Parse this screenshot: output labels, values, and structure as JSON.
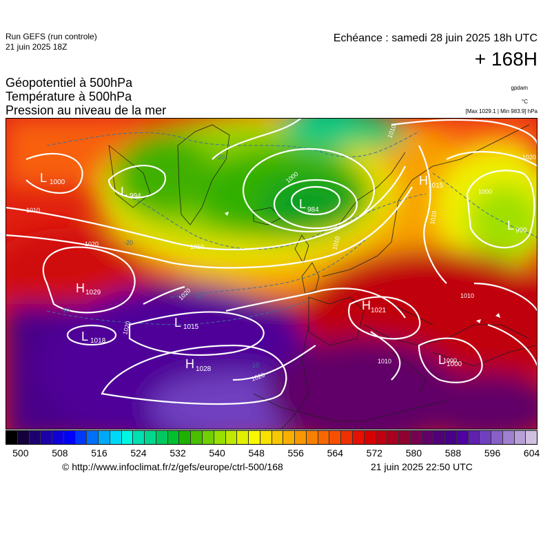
{
  "header": {
    "run_title": "Run GEFS (run controle)",
    "run_date": "21 juin 2025 18Z",
    "echeance": "Echéance : samedi 28 juin 2025 18h UTC",
    "lead_time": "+ 168H"
  },
  "parameters": [
    "Géopotentiel à 500hPa",
    "Température à 500hPa",
    "Pression au niveau de la mer"
  ],
  "units": {
    "geopotential": "gpdam",
    "temperature": "°C",
    "max_min": "[Max 1029.1 | Min 983.9] hPa"
  },
  "pressure_centers": [
    {
      "type": "L",
      "value": "1000"
    },
    {
      "type": "L",
      "value": "994"
    },
    {
      "type": "L",
      "value": "984"
    },
    {
      "type": "H",
      "value": "1015"
    },
    {
      "type": "L",
      "value": "990"
    },
    {
      "type": "H",
      "value": "1029"
    },
    {
      "type": "L",
      "value": "1015"
    },
    {
      "type": "L",
      "value": "1018"
    },
    {
      "type": "H",
      "value": "1028"
    },
    {
      "type": "H",
      "value": "1021"
    },
    {
      "type": "L",
      "value": "1000"
    }
  ],
  "isobar_labels": [
    "1010",
    "1020",
    "1000",
    "1010",
    "1020",
    "1000",
    "1010",
    "1020",
    "1010",
    "1010",
    "1010",
    "1000",
    "1010",
    "1020",
    "1020"
  ],
  "isotherm_labels": [
    "-20",
    "-20",
    "-20",
    "-10",
    "-10"
  ],
  "colorbar": {
    "colors": [
      "#000000",
      "#14003a",
      "#1c0070",
      "#1c00a8",
      "#1000d8",
      "#0000f8",
      "#0038f8",
      "#0070f8",
      "#00a8f8",
      "#00d8f8",
      "#00f8e0",
      "#00e0b0",
      "#00d890",
      "#00c860",
      "#00c030",
      "#20b000",
      "#48c000",
      "#70d000",
      "#98e000",
      "#c0e800",
      "#e0f000",
      "#f8f800",
      "#f8e000",
      "#f8c800",
      "#f8b000",
      "#f89800",
      "#f88000",
      "#f86800",
      "#f85000",
      "#f03000",
      "#e81000",
      "#d80000",
      "#c00010",
      "#a80020",
      "#900030",
      "#780050",
      "#600068",
      "#500078",
      "#480088",
      "#5000a0",
      "#6020b0",
      "#7040c0",
      "#8860c8",
      "#a080d0",
      "#b8a0d8",
      "#d0c0e0"
    ],
    "ticks": [
      "500",
      "508",
      "516",
      "524",
      "532",
      "540",
      "548",
      "556",
      "564",
      "572",
      "580",
      "588",
      "596",
      "604"
    ]
  },
  "footer": {
    "source": "© http://www.infoclimat.fr/z/gefs/europe/ctrl-500/168",
    "generated": "21 juin 2025 22:50 UTC"
  }
}
